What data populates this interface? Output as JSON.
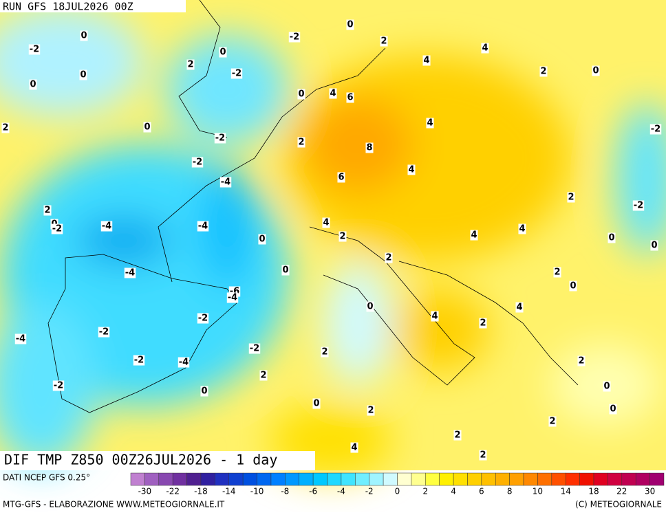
{
  "header": {
    "run": "RUN GFS 18JUL2026 00Z"
  },
  "map": {
    "title": "DIF TMP Z850 00Z26JUL2026 - 1 day",
    "contour_labels": [
      "-2",
      "0",
      "-2",
      "0",
      "2",
      "4",
      "0",
      "2",
      "-2",
      "0",
      "0",
      "4",
      "2",
      "0",
      "0",
      "4",
      "6",
      "0",
      "4",
      "-2",
      "2",
      "-2",
      "2",
      "8",
      "-2",
      "4",
      "6",
      "-4",
      "2",
      "-2",
      "2",
      "0",
      "-2",
      "-4",
      "-4",
      "4",
      "2",
      "4",
      "4",
      "0",
      "0",
      "0",
      "2",
      "0",
      "-4",
      "2",
      "-6",
      "-4",
      "0",
      "0",
      "4",
      "4",
      "-2",
      "2",
      "-2",
      "-4",
      "2",
      "-2",
      "-2",
      "-4",
      "2",
      "2",
      "-2",
      "0",
      "0",
      "0",
      "2",
      "0",
      "2",
      "2",
      "4",
      "2"
    ]
  },
  "footer": {
    "source": "DATI NCEP GFS 0.25°",
    "credit": "MTG-GFS - ELABORAZIONE WWW.METEOGIORNALE.IT",
    "copyright": "(C) METEOGIORNALE"
  },
  "colorbar": {
    "ticks": [
      "-30",
      "-22",
      "-18",
      "-14",
      "-10",
      "-8",
      "-6",
      "-4",
      "-2",
      "0",
      "2",
      "4",
      "6",
      "8",
      "10",
      "14",
      "18",
      "22",
      "30"
    ],
    "colors": [
      "#c080d0",
      "#a060c0",
      "#8848b0",
      "#7030a0",
      "#502090",
      "#3020a0",
      "#2030c0",
      "#1040d0",
      "#0050e0",
      "#0068f0",
      "#0080ff",
      "#0098ff",
      "#00b0ff",
      "#00c8ff",
      "#20d8ff",
      "#40e4ff",
      "#70eeff",
      "#a0f4ff",
      "#d0faff",
      "#ffffd0",
      "#ffff90",
      "#ffff40",
      "#fff000",
      "#ffe000",
      "#ffd000",
      "#ffc000",
      "#ffb000",
      "#ffa000",
      "#ff8800",
      "#ff7000",
      "#ff5000",
      "#ff3000",
      "#f01000",
      "#e00020",
      "#d00040",
      "#c00050",
      "#b00060",
      "#a00070"
    ]
  }
}
